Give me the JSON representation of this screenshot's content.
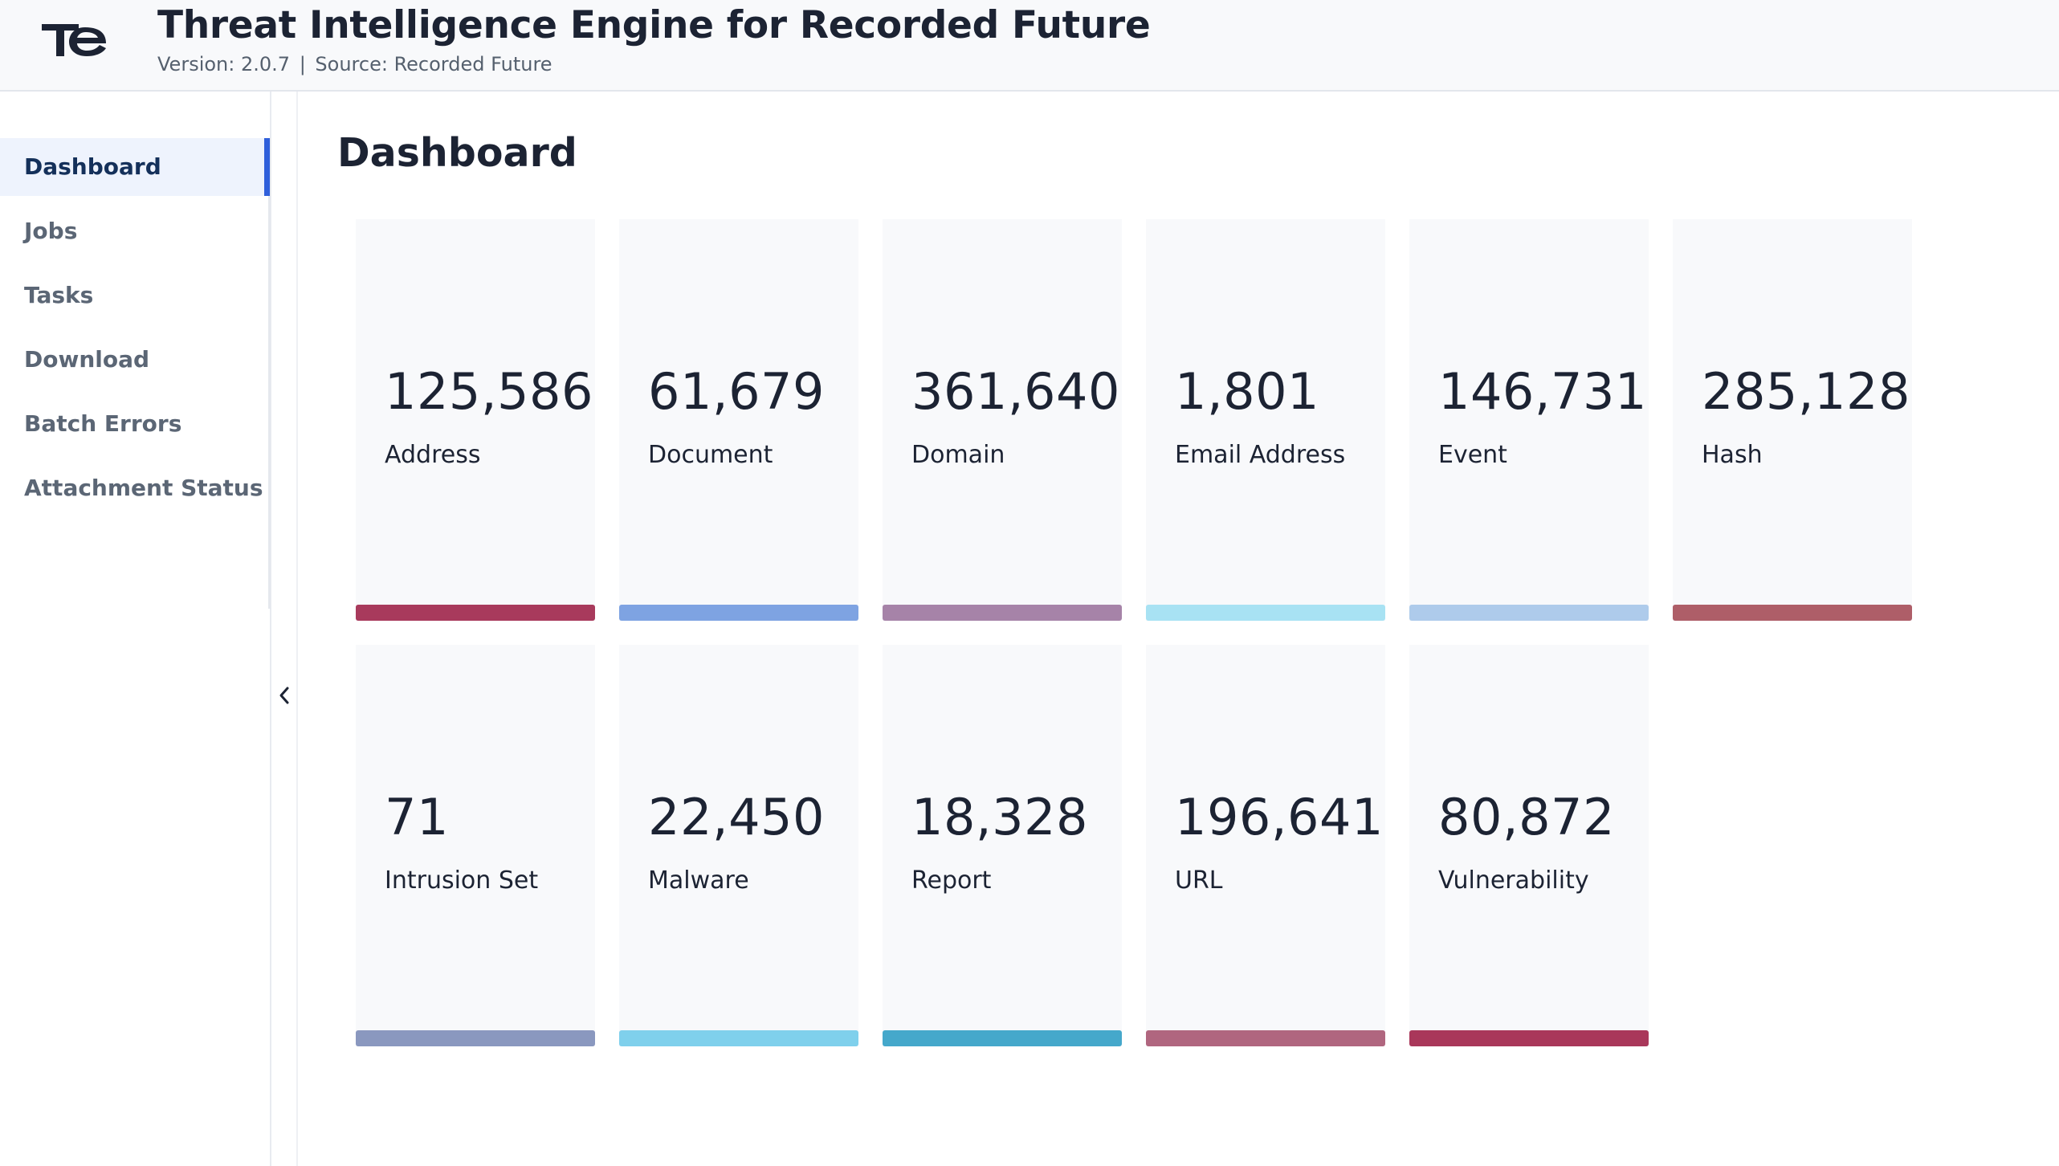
{
  "header": {
    "title": "Threat Intelligence Engine for Recorded Future",
    "version_text": "Version: 2.0.7",
    "separator": "|",
    "source_text": "Source: Recorded Future",
    "logo_icon": "tie-logo-icon"
  },
  "sidebar": {
    "items": [
      {
        "label": "Dashboard",
        "active": true
      },
      {
        "label": "Jobs",
        "active": false
      },
      {
        "label": "Tasks",
        "active": false
      },
      {
        "label": "Download",
        "active": false
      },
      {
        "label": "Batch Errors",
        "active": false
      },
      {
        "label": "Attachment Status",
        "active": false
      }
    ],
    "collapse_icon": "chevron-left-icon"
  },
  "main": {
    "title": "Dashboard",
    "cards": [
      {
        "count": "125,586",
        "label": "Address",
        "color": "#a83a5c"
      },
      {
        "count": "61,679",
        "label": "Document",
        "color": "#7ea3e2"
      },
      {
        "count": "361,640",
        "label": "Domain",
        "color": "#a683a8"
      },
      {
        "count": "1,801",
        "label": "Email Address",
        "color": "#a8e2f3"
      },
      {
        "count": "146,731",
        "label": "Event",
        "color": "#aecbeb"
      },
      {
        "count": "285,128",
        "label": "Hash",
        "color": "#ae5e68"
      },
      {
        "count": "71",
        "label": "Intrusion Set",
        "color": "#8a98bf"
      },
      {
        "count": "22,450",
        "label": "Malware",
        "color": "#7fd0ec"
      },
      {
        "count": "18,328",
        "label": "Report",
        "color": "#45a8cb"
      },
      {
        "count": "196,641",
        "label": "URL",
        "color": "#b0667f"
      },
      {
        "count": "80,872",
        "label": "Vulnerability",
        "color": "#a9375a"
      }
    ]
  }
}
